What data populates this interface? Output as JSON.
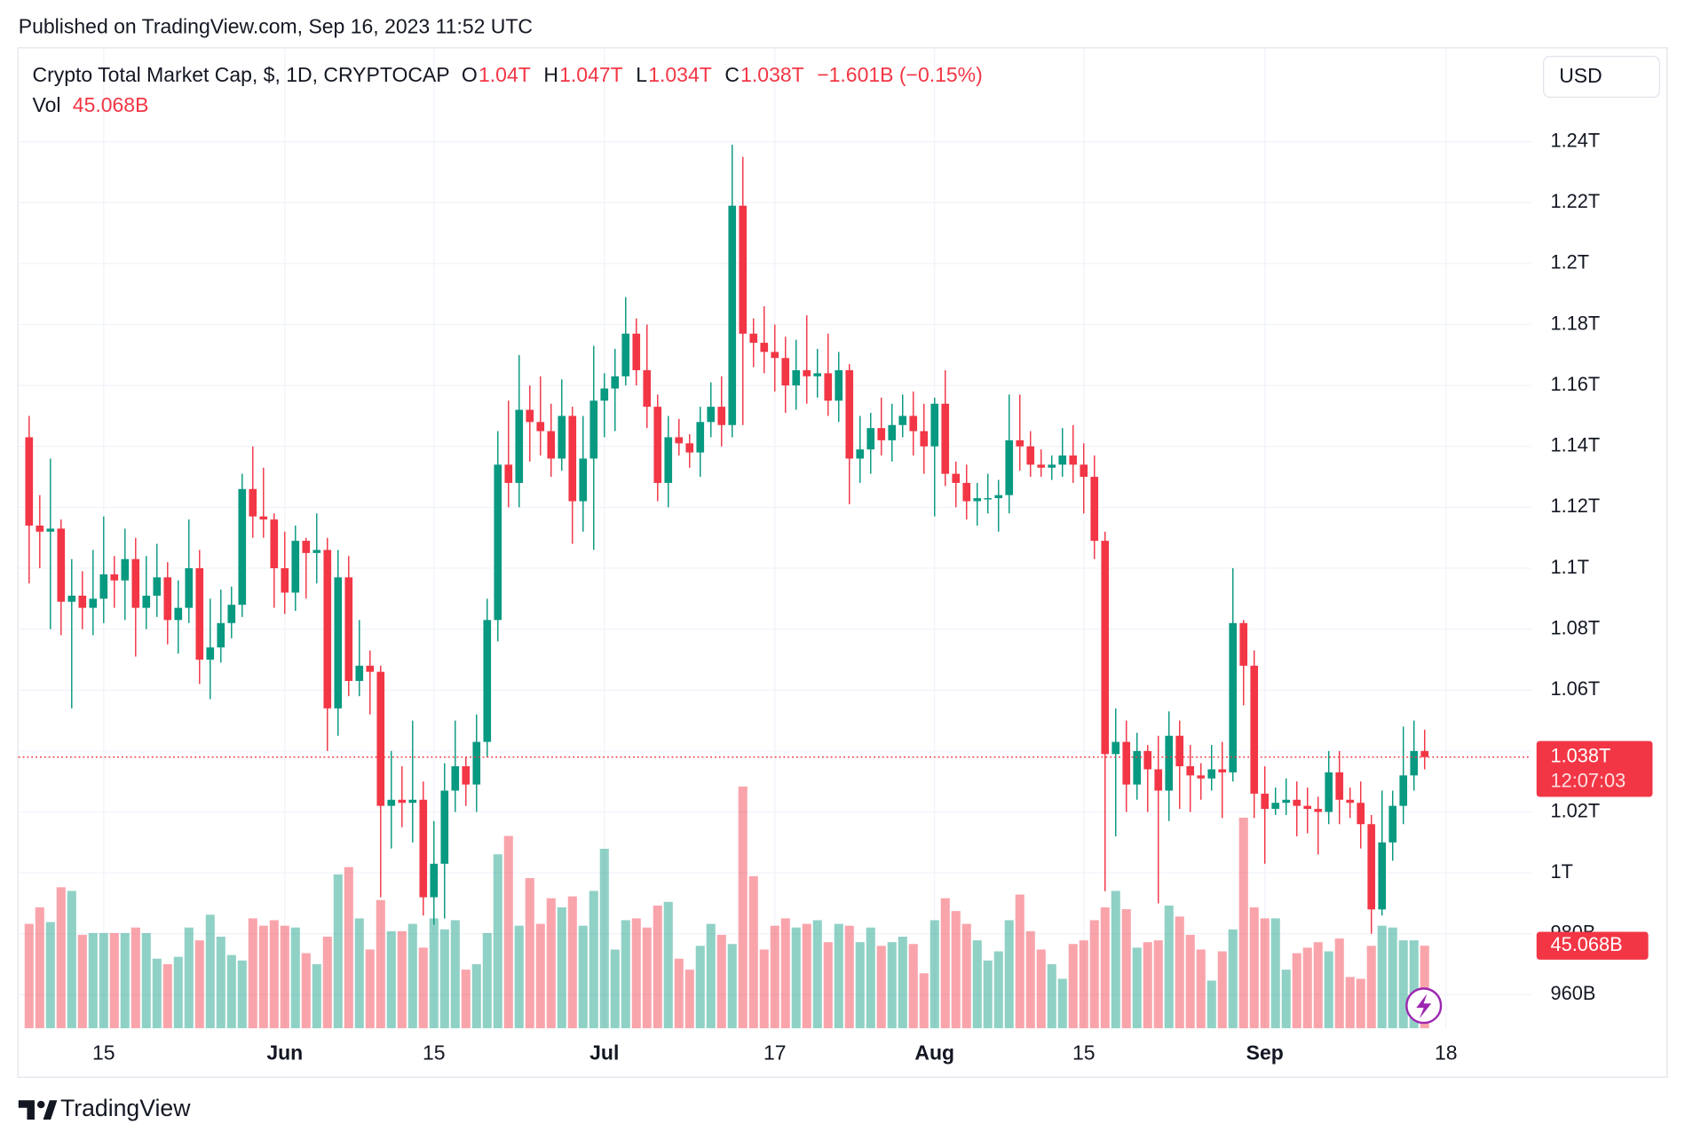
{
  "header": {
    "published": "Published on TradingView.com, Sep 16, 2023 11:52 UTC"
  },
  "legend": {
    "symbol": "Crypto Total Market Cap, $, 1D, CRYPTOCAP",
    "o_label": "O",
    "o": "1.04T",
    "h_label": "H",
    "h": "1.047T",
    "l_label": "L",
    "l": "1.034T",
    "c_label": "C",
    "c": "1.038T",
    "change": "−1.601B (−0.15%)",
    "vol_label": "Vol",
    "vol": "45.068B"
  },
  "currency": "USD",
  "brand": "TradingView",
  "chart_data": {
    "type": "candlestick",
    "x": [
      "2023-05-08",
      "2023-05-09",
      "2023-05-10",
      "2023-05-11",
      "2023-05-12",
      "2023-05-13",
      "2023-05-14",
      "2023-05-15",
      "2023-05-16",
      "2023-05-17",
      "2023-05-18",
      "2023-05-19",
      "2023-05-20",
      "2023-05-21",
      "2023-05-22",
      "2023-05-23",
      "2023-05-24",
      "2023-05-25",
      "2023-05-26",
      "2023-05-27",
      "2023-05-28",
      "2023-05-29",
      "2023-05-30",
      "2023-05-31",
      "2023-06-01",
      "2023-06-02",
      "2023-06-03",
      "2023-06-04",
      "2023-06-05",
      "2023-06-06",
      "2023-06-07",
      "2023-06-08",
      "2023-06-09",
      "2023-06-10",
      "2023-06-11",
      "2023-06-12",
      "2023-06-13",
      "2023-06-14",
      "2023-06-15",
      "2023-06-16",
      "2023-06-17",
      "2023-06-18",
      "2023-06-19",
      "2023-06-20",
      "2023-06-21",
      "2023-06-22",
      "2023-06-23",
      "2023-06-24",
      "2023-06-25",
      "2023-06-26",
      "2023-06-27",
      "2023-06-28",
      "2023-06-29",
      "2023-06-30",
      "2023-07-01",
      "2023-07-02",
      "2023-07-03",
      "2023-07-04",
      "2023-07-05",
      "2023-07-06",
      "2023-07-07",
      "2023-07-08",
      "2023-07-09",
      "2023-07-10",
      "2023-07-11",
      "2023-07-12",
      "2023-07-13",
      "2023-07-14",
      "2023-07-15",
      "2023-07-16",
      "2023-07-17",
      "2023-07-18",
      "2023-07-19",
      "2023-07-20",
      "2023-07-21",
      "2023-07-22",
      "2023-07-23",
      "2023-07-24",
      "2023-07-25",
      "2023-07-26",
      "2023-07-27",
      "2023-07-28",
      "2023-07-29",
      "2023-07-30",
      "2023-07-31",
      "2023-08-01",
      "2023-08-02",
      "2023-08-03",
      "2023-08-04",
      "2023-08-05",
      "2023-08-06",
      "2023-08-07",
      "2023-08-08",
      "2023-08-09",
      "2023-08-10",
      "2023-08-11",
      "2023-08-12",
      "2023-08-13",
      "2023-08-14",
      "2023-08-15",
      "2023-08-16",
      "2023-08-17",
      "2023-08-18",
      "2023-08-19",
      "2023-08-20",
      "2023-08-21",
      "2023-08-22",
      "2023-08-23",
      "2023-08-24",
      "2023-08-25",
      "2023-08-26",
      "2023-08-27",
      "2023-08-28",
      "2023-08-29",
      "2023-08-30",
      "2023-08-31",
      "2023-09-01",
      "2023-09-02",
      "2023-09-03",
      "2023-09-04",
      "2023-09-05",
      "2023-09-06",
      "2023-09-07",
      "2023-09-08",
      "2023-09-09",
      "2023-09-10",
      "2023-09-11",
      "2023-09-12",
      "2023-09-13",
      "2023-09-14",
      "2023-09-15",
      "2023-09-16"
    ],
    "open": [
      1.143,
      1.114,
      1.112,
      1.113,
      1.089,
      1.091,
      1.087,
      1.09,
      1.098,
      1.096,
      1.103,
      1.087,
      1.091,
      1.097,
      1.083,
      1.087,
      1.1,
      1.07,
      1.074,
      1.082,
      1.088,
      1.126,
      1.117,
      1.116,
      1.1,
      1.092,
      1.109,
      1.105,
      1.106,
      1.054,
      1.097,
      1.063,
      1.068,
      1.066,
      1.022,
      1.024,
      1.023,
      1.024,
      0.992,
      1.003,
      1.027,
      1.035,
      1.029,
      1.043,
      1.083,
      1.134,
      1.128,
      1.152,
      1.148,
      1.145,
      1.136,
      1.15,
      1.122,
      1.136,
      1.155,
      1.159,
      1.163,
      1.177,
      1.165,
      1.153,
      1.128,
      1.143,
      1.141,
      1.138,
      1.148,
      1.153,
      1.147,
      1.219,
      1.177,
      1.174,
      1.171,
      1.169,
      1.16,
      1.165,
      1.163,
      1.164,
      1.155,
      1.165,
      1.136,
      1.139,
      1.146,
      1.142,
      1.147,
      1.15,
      1.145,
      1.14,
      1.154,
      1.131,
      1.128,
      1.122,
      1.123,
      1.123,
      1.124,
      1.142,
      1.14,
      1.134,
      1.133,
      1.134,
      1.137,
      1.134,
      1.13,
      1.109,
      1.039,
      1.043,
      1.029,
      1.04,
      1.034,
      1.027,
      1.045,
      1.035,
      1.032,
      1.031,
      1.034,
      1.033,
      1.082,
      1.068,
      1.026,
      1.021,
      1.023,
      1.024,
      1.022,
      1.021,
      1.02,
      1.033,
      1.024,
      1.023,
      1.016,
      0.988,
      1.01,
      1.022,
      1.032,
      1.04
    ],
    "high": [
      1.15,
      1.124,
      1.136,
      1.116,
      1.103,
      1.099,
      1.106,
      1.117,
      1.104,
      1.113,
      1.11,
      1.104,
      1.108,
      1.102,
      1.096,
      1.116,
      1.106,
      1.09,
      1.093,
      1.094,
      1.131,
      1.14,
      1.133,
      1.118,
      1.112,
      1.114,
      1.11,
      1.118,
      1.11,
      1.106,
      1.104,
      1.083,
      1.073,
      1.068,
      1.04,
      1.035,
      1.05,
      1.03,
      1.017,
      1.036,
      1.05,
      1.038,
      1.052,
      1.09,
      1.145,
      1.155,
      1.17,
      1.16,
      1.163,
      1.154,
      1.162,
      1.153,
      1.15,
      1.173,
      1.164,
      1.172,
      1.189,
      1.182,
      1.18,
      1.157,
      1.15,
      1.149,
      1.144,
      1.153,
      1.161,
      1.163,
      1.239,
      1.235,
      1.182,
      1.186,
      1.18,
      1.176,
      1.175,
      1.183,
      1.172,
      1.177,
      1.171,
      1.167,
      1.15,
      1.151,
      1.156,
      1.154,
      1.157,
      1.158,
      1.154,
      1.156,
      1.165,
      1.135,
      1.134,
      1.128,
      1.131,
      1.129,
      1.157,
      1.157,
      1.145,
      1.139,
      1.137,
      1.146,
      1.147,
      1.141,
      1.137,
      1.112,
      1.054,
      1.05,
      1.046,
      1.042,
      1.045,
      1.053,
      1.05,
      1.042,
      1.036,
      1.042,
      1.043,
      1.1,
      1.083,
      1.073,
      1.035,
      1.028,
      1.031,
      1.03,
      1.028,
      1.025,
      1.04,
      1.04,
      1.028,
      1.03,
      1.019,
      1.027,
      1.027,
      1.048,
      1.05,
      1.047
    ],
    "low": [
      1.095,
      1.1,
      1.08,
      1.078,
      1.054,
      1.08,
      1.078,
      1.082,
      1.087,
      1.083,
      1.071,
      1.08,
      1.084,
      1.075,
      1.072,
      1.082,
      1.062,
      1.057,
      1.069,
      1.077,
      1.084,
      1.11,
      1.11,
      1.087,
      1.085,
      1.086,
      1.09,
      1.095,
      1.04,
      1.045,
      1.058,
      1.058,
      1.052,
      0.992,
      1.008,
      1.015,
      1.01,
      0.986,
      0.983,
      0.985,
      1.02,
      1.022,
      1.02,
      1.038,
      1.076,
      1.12,
      1.12,
      1.135,
      1.137,
      1.13,
      1.132,
      1.108,
      1.112,
      1.106,
      1.143,
      1.145,
      1.16,
      1.16,
      1.146,
      1.122,
      1.12,
      1.137,
      1.133,
      1.13,
      1.143,
      1.14,
      1.143,
      1.147,
      1.166,
      1.164,
      1.158,
      1.151,
      1.152,
      1.154,
      1.156,
      1.15,
      1.148,
      1.121,
      1.128,
      1.131,
      1.137,
      1.135,
      1.143,
      1.137,
      1.131,
      1.117,
      1.127,
      1.12,
      1.116,
      1.114,
      1.118,
      1.112,
      1.118,
      1.132,
      1.13,
      1.13,
      1.129,
      1.13,
      1.128,
      1.118,
      1.103,
      0.994,
      1.012,
      1.02,
      1.024,
      1.02,
      0.99,
      1.017,
      1.021,
      1.02,
      1.024,
      1.027,
      1.018,
      1.03,
      1.055,
      1.018,
      1.003,
      1.019,
      1.019,
      1.012,
      1.013,
      1.006,
      1.016,
      1.016,
      1.018,
      1.008,
      0.98,
      0.986,
      1.004,
      1.016,
      1.027,
      1.034
    ],
    "close": [
      1.114,
      1.112,
      1.113,
      1.089,
      1.091,
      1.087,
      1.09,
      1.098,
      1.096,
      1.103,
      1.087,
      1.091,
      1.097,
      1.083,
      1.087,
      1.1,
      1.07,
      1.074,
      1.082,
      1.088,
      1.126,
      1.117,
      1.116,
      1.1,
      1.092,
      1.109,
      1.105,
      1.106,
      1.054,
      1.097,
      1.063,
      1.068,
      1.066,
      1.022,
      1.024,
      1.023,
      1.024,
      0.992,
      1.003,
      1.027,
      1.035,
      1.029,
      1.043,
      1.083,
      1.134,
      1.128,
      1.152,
      1.148,
      1.145,
      1.136,
      1.15,
      1.122,
      1.136,
      1.155,
      1.159,
      1.163,
      1.177,
      1.165,
      1.153,
      1.128,
      1.143,
      1.141,
      1.138,
      1.148,
      1.153,
      1.147,
      1.219,
      1.177,
      1.174,
      1.171,
      1.169,
      1.16,
      1.165,
      1.163,
      1.164,
      1.155,
      1.165,
      1.136,
      1.139,
      1.146,
      1.142,
      1.147,
      1.15,
      1.145,
      1.14,
      1.154,
      1.131,
      1.128,
      1.122,
      1.123,
      1.123,
      1.124,
      1.142,
      1.14,
      1.134,
      1.133,
      1.134,
      1.137,
      1.134,
      1.13,
      1.109,
      1.039,
      1.043,
      1.029,
      1.04,
      1.034,
      1.027,
      1.045,
      1.035,
      1.032,
      1.031,
      1.034,
      1.033,
      1.082,
      1.068,
      1.026,
      1.021,
      1.023,
      1.024,
      1.022,
      1.021,
      1.02,
      1.033,
      1.024,
      1.023,
      1.016,
      0.988,
      1.01,
      1.022,
      1.032,
      1.04,
      1.038
    ],
    "volume": [
      57,
      66,
      58,
      77,
      75,
      51,
      52,
      52,
      52,
      52,
      55,
      52,
      38,
      35,
      39,
      55,
      48,
      62,
      50,
      40,
      37,
      60,
      56,
      59,
      56,
      55,
      41,
      35,
      50,
      84,
      88,
      60,
      43,
      70,
      53,
      53,
      57,
      44,
      60,
      54,
      59,
      32,
      35,
      52,
      95,
      105,
      56,
      82,
      57,
      71,
      66,
      72,
      56,
      75,
      98,
      43,
      59,
      60,
      55,
      67,
      69,
      38,
      32,
      45,
      57,
      51,
      46,
      132,
      83,
      43,
      56,
      60,
      55,
      57,
      59,
      47,
      57,
      56,
      47,
      55,
      45,
      47,
      50,
      46,
      30,
      59,
      71,
      64,
      57,
      48,
      37,
      42,
      59,
      73,
      53,
      43,
      35,
      27,
      46,
      48,
      59,
      66,
      75,
      65,
      44,
      47,
      48,
      67,
      61,
      51,
      43,
      26,
      42,
      54,
      115,
      66,
      60,
      60,
      32,
      41,
      44,
      47,
      42,
      49,
      28,
      27,
      45,
      56,
      55,
      48,
      48,
      45.068
    ],
    "up_color": "#089981",
    "down_color": "#f23645",
    "ylim": [
      0.949,
      1.271
    ],
    "yticks": [
      {
        "value": 0.96,
        "label": "960B"
      },
      {
        "value": 0.98,
        "label": "980B"
      },
      {
        "value": 1.0,
        "label": "1T"
      },
      {
        "value": 1.02,
        "label": "1.02T"
      },
      {
        "value": 1.04,
        "label": "1.04T"
      },
      {
        "value": 1.06,
        "label": "1.06T"
      },
      {
        "value": 1.08,
        "label": "1.08T"
      },
      {
        "value": 1.1,
        "label": "1.1T"
      },
      {
        "value": 1.12,
        "label": "1.12T"
      },
      {
        "value": 1.14,
        "label": "1.14T"
      },
      {
        "value": 1.16,
        "label": "1.16T"
      },
      {
        "value": 1.18,
        "label": "1.18T"
      },
      {
        "value": 1.2,
        "label": "1.2T"
      },
      {
        "value": 1.22,
        "label": "1.22T"
      },
      {
        "value": 1.24,
        "label": "1.24T"
      }
    ],
    "xlim": [
      "2023-05-07",
      "2023-09-26"
    ],
    "xticks": [
      {
        "value": "2023-05-15",
        "label": "15"
      },
      {
        "value": "2023-06-01",
        "label": "Jun"
      },
      {
        "value": "2023-06-15",
        "label": "15"
      },
      {
        "value": "2023-07-01",
        "label": "Jul"
      },
      {
        "value": "2023-07-17",
        "label": "17"
      },
      {
        "value": "2023-08-01",
        "label": "Aug"
      },
      {
        "value": "2023-08-15",
        "label": "15"
      },
      {
        "value": "2023-09-01",
        "label": "Sep"
      },
      {
        "value": "2023-09-18",
        "label": "18"
      }
    ],
    "grid": true,
    "last_price_label": "1.038T",
    "countdown": "12:07:03",
    "last_volume_label": "45.068B"
  }
}
